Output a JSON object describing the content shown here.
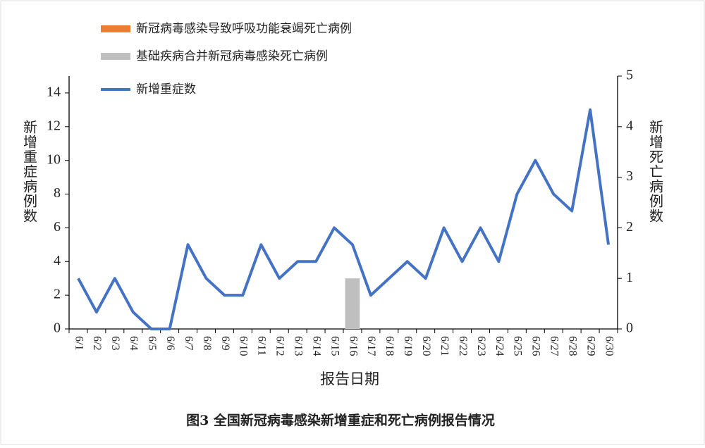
{
  "chart_data": {
    "type": "bar",
    "title": "图3 全国新冠病毒感染新增重症和死亡病例报告情况",
    "x_label": "报告日期",
    "y_label": "新增重症病例数",
    "y2_label": "新增死亡病例数",
    "categories": [
      "6/1",
      "6/2",
      "6/3",
      "6/4",
      "6/5",
      "6/6",
      "6/7",
      "6/8",
      "6/9",
      "6/10",
      "6/11",
      "6/12",
      "6/13",
      "6/14",
      "6/15",
      "6/16",
      "6/17",
      "6/18",
      "6/19",
      "6/20",
      "6/21",
      "6/22",
      "6/23",
      "6/24",
      "6/25",
      "6/26",
      "6/27",
      "6/28",
      "6/29",
      "6/30"
    ],
    "series": [
      {
        "name": "新冠病毒感染导致呼吸功能衰竭死亡病例",
        "type": "bar",
        "axis": "y2",
        "color": "#ed7d31",
        "values": [
          0,
          0,
          0,
          0,
          0,
          0,
          0,
          0,
          0,
          0,
          0,
          0,
          0,
          0,
          0,
          0,
          0,
          0,
          0,
          0,
          0,
          0,
          0,
          0,
          0,
          0,
          0,
          0,
          0,
          0
        ]
      },
      {
        "name": "基础疾病合并新冠病毒感染死亡病例",
        "type": "bar",
        "axis": "y2",
        "color": "#bfbfbf",
        "values": [
          0,
          0,
          0,
          0,
          0,
          0,
          0,
          0,
          0,
          0,
          0,
          0,
          0,
          0,
          0,
          1,
          0,
          0,
          0,
          0,
          0,
          0,
          0,
          0,
          0,
          0,
          0,
          0,
          0,
          0
        ]
      },
      {
        "name": "新增重症数",
        "type": "line",
        "color": "#4472c4",
        "values": [
          3,
          1,
          3,
          1,
          0,
          0,
          5,
          3,
          2,
          2,
          5,
          3,
          4,
          4,
          6,
          5,
          2,
          3,
          4,
          3,
          6,
          4,
          6,
          4,
          8,
          10,
          8,
          7,
          13,
          5
        ]
      }
    ],
    "ylim": [
      0,
      15
    ],
    "yticks": [
      0,
      2,
      4,
      6,
      8,
      10,
      12,
      14
    ],
    "y2lim": [
      0,
      5
    ],
    "y2ticks": [
      0,
      1,
      2,
      3,
      4,
      5
    ]
  }
}
